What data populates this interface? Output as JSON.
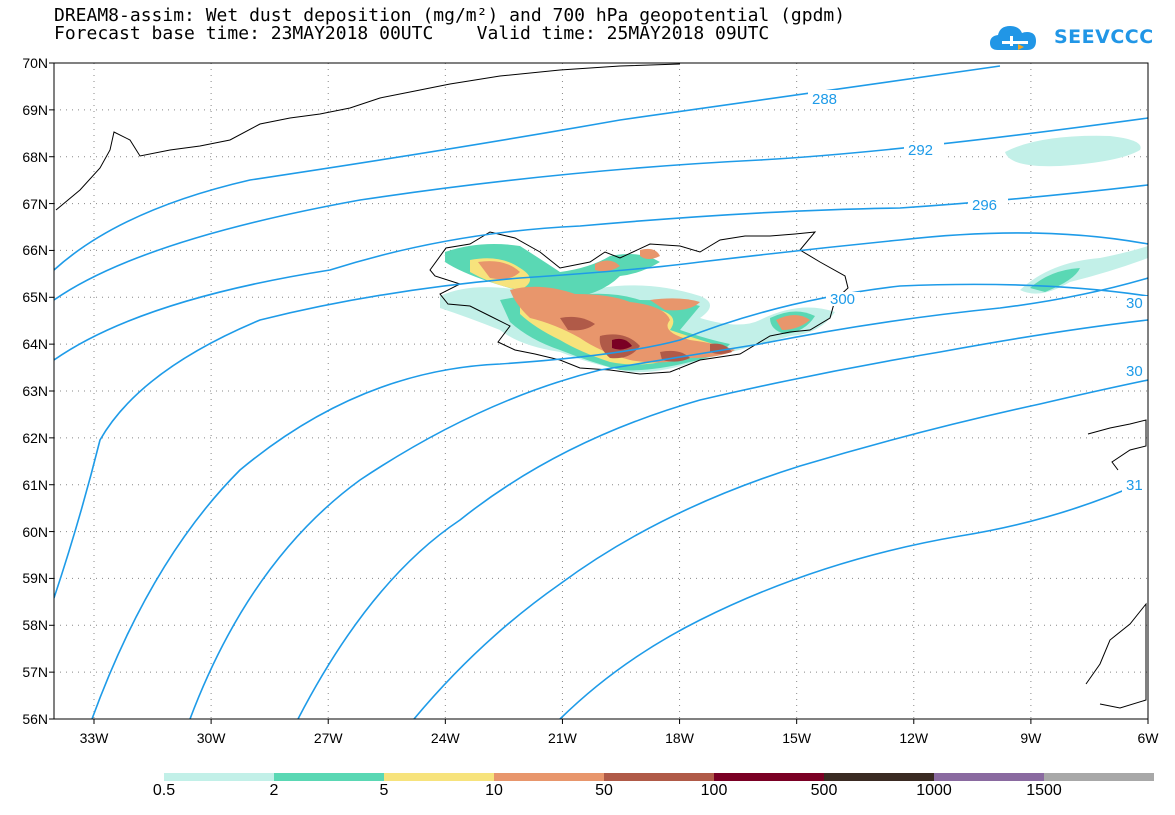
{
  "header": {
    "title_line1": "DREAM8-assim: Wet dust deposition (mg/m²) and 700 hPa geopotential (gpdm)",
    "title_line2": "Forecast base time: 23MAY2018 00UTC    Valid time: 25MAY2018 09UTC"
  },
  "logo": {
    "text": "SEEVCCC",
    "icon": "cloud-icon",
    "color": "#2196e6"
  },
  "map": {
    "latitude_labels": [
      "70N",
      "69N",
      "68N",
      "67N",
      "66N",
      "65N",
      "64N",
      "63N",
      "62N",
      "61N",
      "60N",
      "59N",
      "58N",
      "57N",
      "56N"
    ],
    "longitude_labels": [
      "33W",
      "30W",
      "27W",
      "24W",
      "21W",
      "18W",
      "15W",
      "12W",
      "9W",
      "6W"
    ],
    "contour_color": "#1e9be8",
    "contour_labels": [
      "288",
      "292",
      "296",
      "300",
      "30",
      "30",
      "31"
    ]
  },
  "legend": {
    "thresholds": [
      "0.5",
      "2",
      "5",
      "10",
      "50",
      "100",
      "500",
      "1000",
      "1500"
    ],
    "colors": [
      "#c2f0e8",
      "#5ad8b4",
      "#f7e37c",
      "#e8966c",
      "#b05a48",
      "#7a0024",
      "#3a2a22",
      "#8a6aa0",
      "#a8a8a8"
    ]
  }
}
